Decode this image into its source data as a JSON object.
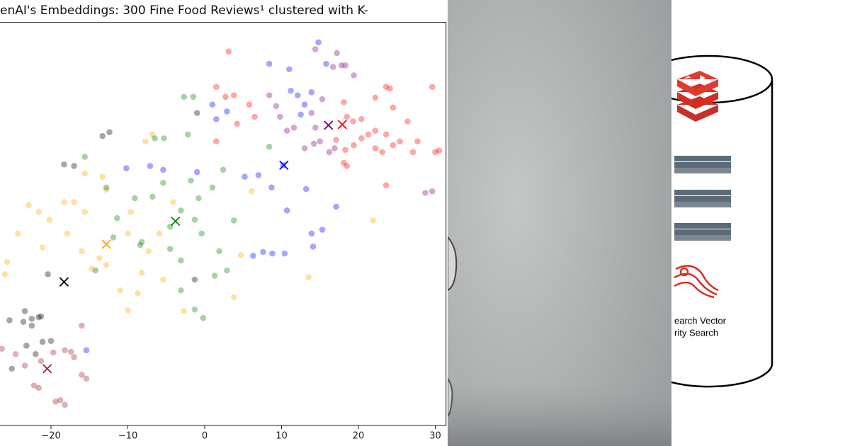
{
  "chart_data": {
    "type": "scatter",
    "title": "enAI's Embeddings: 300 Fine Food Reviews¹ clustered with K-",
    "xlim": [
      -26.6,
      31.4
    ],
    "ylim": [
      -25,
      27.5
    ],
    "xticks": [
      {
        "value": -20,
        "label": "−20"
      },
      {
        "value": -10,
        "label": "−10"
      },
      0,
      10,
      20,
      30
    ],
    "series": [
      {
        "color": "#ffa500",
        "x": [
          -22.9,
          -21.6,
          -20.2,
          -24.3,
          -25.7,
          -18.3,
          -17.0,
          -15.6,
          -13.3,
          -12.8,
          -15.6,
          -16.0,
          -13.7,
          -12.8,
          -14.7,
          -10.0,
          -9.6,
          -8.2,
          -8.7,
          -6.8,
          -7.7,
          -4.1,
          -5.4,
          -2.7,
          -5.9,
          -7.3,
          -11.0,
          -10.0,
          4.7,
          6.1,
          3.8,
          13.5,
          21.9,
          -26.0,
          -17.9,
          -21.1
        ],
        "y": [
          3.7,
          2.8,
          1.8,
          0,
          -3.7,
          4.1,
          4.1,
          2.8,
          7.4,
          5.7,
          7.8,
          -2.3,
          -3.2,
          -4.1,
          -4.6,
          0,
          2.8,
          -5.1,
          -7.8,
          12.9,
          12.0,
          4.1,
          -6.0,
          -10.1,
          0,
          -2.3,
          -7.4,
          -10.0,
          -2.8,
          5.5,
          -8.3,
          -5.7,
          1.7,
          -5.3,
          0,
          -1.8
        ],
        "centroid": {
          "x": -12.8,
          "y": -1.4
        }
      },
      {
        "color": "#008000",
        "x": [
          -2.7,
          -1.5,
          -6.5,
          -5.3,
          -2.2,
          -15.6,
          -12.8,
          -11.4,
          -9.1,
          -8.2,
          -6.8,
          -5.4,
          -4.5,
          -3.1,
          -3.1,
          -1.8,
          -0.8,
          1.0,
          2.4,
          -0.4,
          1.9,
          2.9,
          3.8,
          1.3,
          -4.5,
          -1.3,
          -0.2,
          -8.4,
          -14.2,
          -11.9,
          -1.3,
          -3.1,
          8.4
        ],
        "y": [
          17.8,
          17.8,
          12.4,
          12.4,
          12.9,
          10.0,
          6.0,
          2.0,
          4.6,
          -1.1,
          4.8,
          6.6,
          0.9,
          3.0,
          -7.4,
          6.9,
          4.6,
          6.0,
          8.3,
          0,
          -2.3,
          -4.8,
          1.7,
          -5.5,
          -2.0,
          -9.9,
          -11.0,
          -1.5,
          -4.8,
          -0.5,
          1.8,
          -3.5,
          11.3
        ],
        "centroid": {
          "x": -3.8,
          "y": 1.6
        }
      },
      {
        "color": "#0000ff",
        "x": [
          1.0,
          2.9,
          1.5,
          8.4,
          11.2,
          12.1,
          13.9,
          13.0,
          12.5,
          -10.2,
          -7.1,
          -5.4,
          -1.0,
          5.2,
          7.0,
          8.7,
          10.2,
          13.2,
          10.7,
          17.1,
          13.9,
          15.3,
          6.3,
          7.6,
          8.8,
          10.4,
          14.1,
          -15.4,
          14.8,
          11.0,
          15.8
        ],
        "y": [
          16.8,
          15.9,
          14.9,
          22.1,
          18.6,
          18.0,
          18.4,
          16.8,
          15.5,
          8.5,
          8.8,
          8.3,
          8.0,
          7.4,
          7.6,
          6.0,
          8.9,
          5.8,
          3.0,
          3.5,
          0,
          0.5,
          -2.9,
          -2.4,
          -2.6,
          -2.6,
          -1.7,
          -15.2,
          24.9,
          21.4,
          22.1
        ],
        "centroid": {
          "x": 10.3,
          "y": 8.9
        }
      },
      {
        "color": "#800080",
        "x": [
          14.4,
          17.2,
          17.8,
          16.7,
          18.3,
          19.4,
          9.3,
          9.8,
          10.7,
          11.6,
          8.4,
          14.4,
          15.0,
          16.2,
          16.9,
          13.0,
          14.2,
          28.7,
          29.6,
          15.3,
          13.9
        ],
        "y": [
          24.0,
          23.5,
          21.9,
          21.7,
          21.9,
          20.6,
          16.6,
          15.2,
          13.4,
          13.8,
          18.0,
          13.8,
          12.0,
          10.6,
          11.1,
          11.1,
          11.7,
          5.3,
          5.5,
          17.5,
          15.7
        ],
        "centroid": {
          "x": 16.1,
          "y": 14.1
        }
      },
      {
        "color": "#ff0000",
        "x": [
          3.1,
          1.5,
          2.7,
          3.8,
          5.8,
          1.5,
          4.2,
          6.5,
          18.1,
          18.5,
          19.3,
          20.4,
          21.3,
          22.2,
          23.6,
          20.4,
          22.2,
          23.1,
          24.5,
          25.4,
          27.7,
          30.0,
          30.5,
          24.1,
          23.6,
          22.2,
          24.5,
          26.4,
          29.6,
          23.6,
          18.1,
          18.5,
          18.3,
          17.1,
          19.4,
          27.1
        ],
        "y": [
          23.7,
          19.1,
          17.8,
          18.0,
          16.8,
          12.0,
          14.3,
          15.2,
          17.1,
          15.2,
          14.6,
          14.9,
          12.9,
          13.4,
          12.9,
          12.4,
          11.1,
          10.6,
          11.5,
          12.0,
          12.0,
          10.6,
          10.8,
          18.9,
          19.1,
          17.7,
          16.4,
          14.6,
          19.1,
          6.3,
          9.2,
          8.8,
          10.9,
          12.2,
          11.5,
          10.6
        ],
        "centroid": {
          "x": 17.9,
          "y": 14.2
        }
      },
      {
        "color": "#000000",
        "x": [
          -12.4,
          -13.3,
          -18.3,
          -17.0,
          -1.0,
          -20.4,
          -23.4,
          -22.5,
          -21.3,
          -23.6,
          -22.5,
          -25.4,
          -21.6,
          -21.1,
          -20.0,
          -22.0,
          -25.1,
          -1.3,
          -23.2
        ],
        "y": [
          13.2,
          12.7,
          9.0,
          8.8,
          15.7,
          -5.3,
          -10.1,
          -11.1,
          -10.8,
          -11.5,
          -12.0,
          -11.3,
          -10.9,
          -14.1,
          -14.0,
          -15.7,
          -17.6,
          -6.0,
          -14.6
        ],
        "centroid": {
          "x": -18.3,
          "y": -6.3
        }
      },
      {
        "color": "#a0202a",
        "x": [
          -26.4,
          -24.6,
          -23.4,
          -21.3,
          -18.2,
          -17.4,
          -17.0,
          -16.0,
          -16.0,
          -15.4,
          -22.2,
          -21.6,
          -18.8,
          -18.2,
          -19.4,
          -19.7
        ],
        "y": [
          -15.0,
          -15.7,
          -17.2,
          -16.6,
          -15.2,
          -15.4,
          -16.1,
          -12.0,
          -18.4,
          -18.9,
          -19.8,
          -20.1,
          -21.7,
          -22.3,
          -21.9,
          -15.5
        ],
        "centroid": {
          "x": -20.5,
          "y": -17.6
        }
      }
    ]
  },
  "diagram": {
    "caption": [
      "earch Vector",
      "rity Search"
    ]
  }
}
